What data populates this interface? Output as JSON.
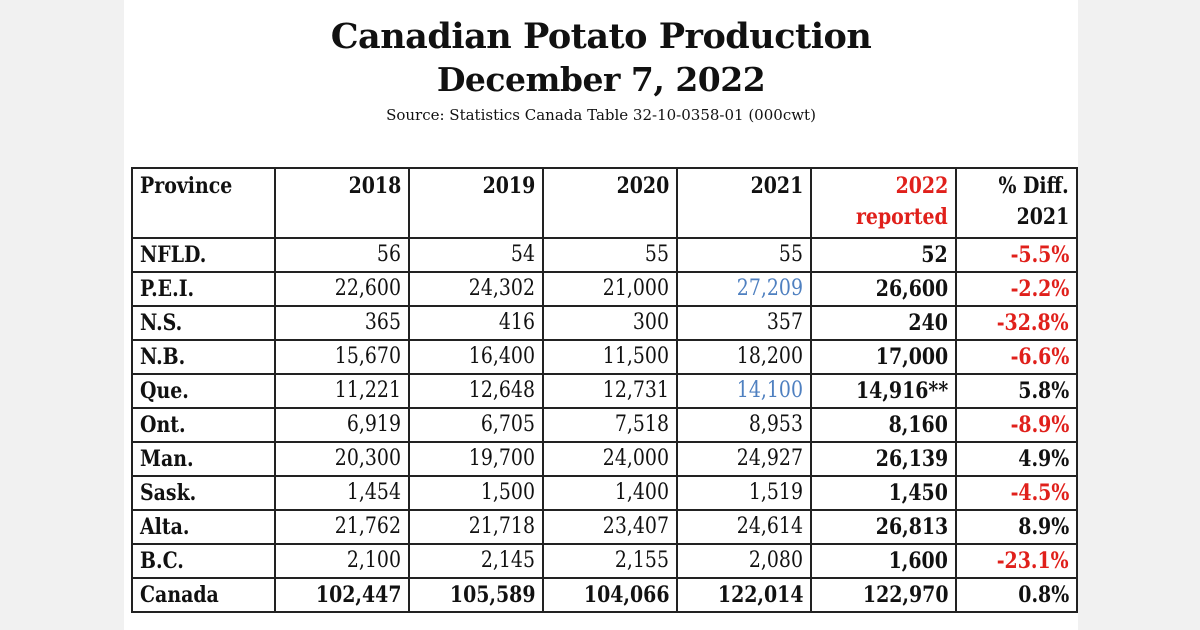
{
  "header": {
    "title": "Canadian Potato Production",
    "date": "December 7, 2022",
    "source": "Source: Statistics Canada Table 32-10-0358-01 (000cwt)"
  },
  "colors": {
    "negative": "#e0201b",
    "revised": "#4f80c0",
    "header_2022": "#e0201b"
  },
  "table": {
    "columns": [
      "Province",
      "2018",
      "2019",
      "2020",
      "2021",
      "2022 reported",
      "% Diff. 2021"
    ],
    "column_lines": [
      [
        "Province"
      ],
      [
        "2018"
      ],
      [
        "2019"
      ],
      [
        "2020"
      ],
      [
        "2021"
      ],
      [
        "2022",
        "reported"
      ],
      [
        "% Diff.",
        "2021"
      ]
    ],
    "rows": [
      {
        "province": "NFLD.",
        "values": [
          "56",
          "54",
          "55",
          "55",
          "52",
          "-5.5%"
        ],
        "revised_2021": false
      },
      {
        "province": "P.E.I.",
        "values": [
          "22,600",
          "24,302",
          "21,000",
          "27,209",
          "26,600",
          "-2.2%"
        ],
        "revised_2021": true
      },
      {
        "province": "N.S.",
        "values": [
          "365",
          "416",
          "300",
          "357",
          "240",
          "-32.8%"
        ],
        "revised_2021": false
      },
      {
        "province": "N.B.",
        "values": [
          "15,670",
          "16,400",
          "11,500",
          "18,200",
          "17,000",
          "-6.6%"
        ],
        "revised_2021": false
      },
      {
        "province": "Que.",
        "values": [
          "11,221",
          "12,648",
          "12,731",
          "14,100",
          "14,916**",
          "5.8%"
        ],
        "revised_2021": true
      },
      {
        "province": "Ont.",
        "values": [
          "6,919",
          "6,705",
          "7,518",
          "8,953",
          "8,160",
          "-8.9%"
        ],
        "revised_2021": false
      },
      {
        "province": "Man.",
        "values": [
          "20,300",
          "19,700",
          "24,000",
          "24,927",
          "26,139",
          "4.9%"
        ],
        "revised_2021": false
      },
      {
        "province": "Sask.",
        "values": [
          "1,454",
          "1,500",
          "1,400",
          "1,519",
          "1,450",
          "-4.5%"
        ],
        "revised_2021": false
      },
      {
        "province": "Alta.",
        "values": [
          "21,762",
          "21,718",
          "23,407",
          "24,614",
          "26,813",
          "8.9%"
        ],
        "revised_2021": false
      },
      {
        "province": "B.C.",
        "values": [
          "2,100",
          "2,145",
          "2,155",
          "2,080",
          "1,600",
          "-23.1%"
        ],
        "revised_2021": false
      },
      {
        "province": "Canada",
        "values": [
          "102,447",
          "105,589",
          "104,066",
          "122,014",
          "122,970",
          "0.8%"
        ],
        "revised_2021": false
      }
    ]
  }
}
